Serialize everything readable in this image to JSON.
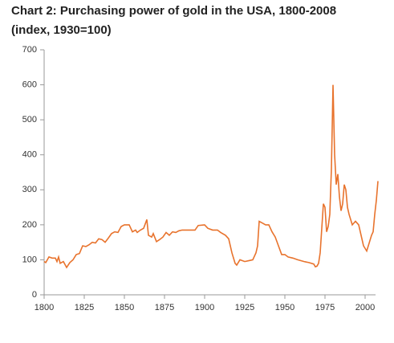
{
  "chart_data": {
    "type": "line",
    "title": "Chart 2: Purchasing power of gold in the USA, 1800-2008",
    "subtitle": "(index, 1930=100)",
    "x": [
      1800,
      1801,
      1803,
      1805,
      1807,
      1808,
      1809,
      1810,
      1812,
      1814,
      1816,
      1818,
      1820,
      1822,
      1824,
      1826,
      1828,
      1830,
      1832,
      1834,
      1836,
      1838,
      1840,
      1842,
      1844,
      1846,
      1848,
      1850,
      1853,
      1855,
      1857,
      1858,
      1860,
      1862,
      1864,
      1865,
      1867,
      1868,
      1870,
      1872,
      1874,
      1876,
      1878,
      1880,
      1882,
      1884,
      1886,
      1890,
      1894,
      1896,
      1900,
      1902,
      1905,
      1908,
      1910,
      1913,
      1915,
      1917,
      1919,
      1920,
      1922,
      1925,
      1928,
      1930,
      1932,
      1933,
      1934,
      1936,
      1938,
      1940,
      1942,
      1944,
      1946,
      1948,
      1950,
      1952,
      1955,
      1958,
      1962,
      1965,
      1968,
      1969,
      1970,
      1971,
      1972,
      1974,
      1975,
      1976,
      1977,
      1978,
      1979,
      1980,
      1981,
      1982,
      1983,
      1984,
      1985,
      1986,
      1987,
      1988,
      1989,
      1990,
      1992,
      1994,
      1996,
      1998,
      1999,
      2001,
      2002,
      2004,
      2005,
      2006,
      2007,
      2008
    ],
    "series": [
      {
        "name": "Purchasing power of gold",
        "color": "#e8732d",
        "values": [
          95,
          92,
          108,
          105,
          105,
          95,
          108,
          90,
          95,
          78,
          92,
          100,
          115,
          118,
          140,
          138,
          143,
          150,
          148,
          160,
          158,
          150,
          162,
          175,
          180,
          178,
          195,
          200,
          200,
          180,
          185,
          178,
          185,
          190,
          215,
          170,
          165,
          175,
          152,
          158,
          165,
          178,
          170,
          180,
          178,
          183,
          185,
          185,
          185,
          198,
          200,
          190,
          185,
          185,
          178,
          170,
          160,
          120,
          90,
          85,
          100,
          95,
          98,
          100,
          120,
          140,
          210,
          205,
          200,
          200,
          180,
          165,
          140,
          115,
          115,
          108,
          105,
          100,
          95,
          92,
          88,
          80,
          82,
          90,
          120,
          260,
          250,
          180,
          195,
          230,
          360,
          600,
          400,
          315,
          345,
          280,
          240,
          260,
          315,
          300,
          250,
          230,
          200,
          210,
          200,
          160,
          140,
          125,
          140,
          170,
          180,
          230,
          270,
          325
        ]
      }
    ],
    "xlim": [
      1800,
      2008
    ],
    "xticks": [
      1800,
      1825,
      1850,
      1875,
      1900,
      1925,
      1950,
      1975,
      2000
    ],
    "ylim": [
      0,
      700
    ],
    "yticks": [
      0,
      100,
      200,
      300,
      400,
      500,
      600,
      700
    ]
  }
}
